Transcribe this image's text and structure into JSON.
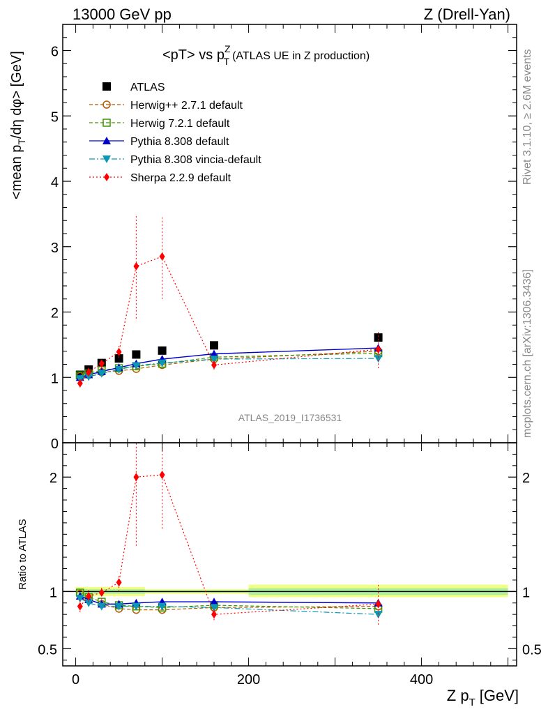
{
  "header": {
    "left": "13000 GeV pp",
    "right": "Z (Drell-Yan)"
  },
  "side_labels": {
    "rivet": "Rivet 3.1.10, ≥ 2.6M events",
    "mcplots": "mcplots.cern.ch [arXiv:1306.3436]"
  },
  "chart_data": [
    {
      "type": "scatter",
      "title": "<pT> vs pTZ (ATLAS UE in Z production)",
      "title_main": "<pT> vs p",
      "title_sup": "Z",
      "title_sub": "T",
      "title_rest": "(ATLAS UE in Z production)",
      "ylabel": "<mean p_T/dη dφ> [GeV]",
      "ylabel_parts": {
        "a": "<mean p",
        "sub": "T",
        "b": "/dη dφ> [GeV]"
      },
      "watermark": "ATLAS_2019_I1736531",
      "xlim": [
        -15,
        510
      ],
      "ylim": [
        0,
        6.4
      ],
      "yticks": [
        "0",
        "1",
        "2",
        "3",
        "4",
        "5",
        "6"
      ],
      "ytick_values": [
        0,
        1,
        2,
        3,
        4,
        5,
        6
      ],
      "x": [
        5,
        15,
        30,
        50,
        70,
        100,
        160,
        350
      ],
      "series": [
        {
          "name": "ATLAS",
          "color": "#000000",
          "marker": "square-filled",
          "line": "none",
          "values": [
            1.04,
            1.12,
            1.22,
            1.29,
            1.35,
            1.41,
            1.49,
            1.61
          ],
          "band_lo": [
            1.02,
            1.1,
            1.19,
            1.26,
            1.32,
            1.38,
            1.46,
            1.57
          ],
          "band_hi": [
            1.06,
            1.14,
            1.25,
            1.32,
            1.38,
            1.44,
            1.52,
            1.65
          ]
        },
        {
          "name": "Herwig++ 2.7.1 default",
          "color": "#b35a00",
          "marker": "circle-open",
          "line": "dashed",
          "values": [
            1.02,
            1.04,
            1.08,
            1.1,
            1.13,
            1.19,
            1.28,
            1.4
          ]
        },
        {
          "name": "Herwig 7.2.1 default",
          "color": "#3c9600",
          "marker": "square-open",
          "line": "dashed",
          "values": [
            1.03,
            1.06,
            1.11,
            1.14,
            1.17,
            1.21,
            1.31,
            1.37
          ]
        },
        {
          "name": "Pythia 8.308 default",
          "color": "#0000cc",
          "marker": "triangle-up",
          "line": "solid",
          "values": [
            1.0,
            1.04,
            1.09,
            1.15,
            1.21,
            1.28,
            1.36,
            1.45
          ]
        },
        {
          "name": "Pythia 8.308 vincia-default",
          "color": "#0a96b4",
          "marker": "triangle-down",
          "line": "dashdot",
          "values": [
            0.98,
            1.01,
            1.06,
            1.12,
            1.18,
            1.22,
            1.28,
            1.29
          ]
        },
        {
          "name": "Sherpa 2.2.9 default",
          "color": "#ff0000",
          "marker": "diamond",
          "line": "dotted",
          "values": [
            0.91,
            1.08,
            1.21,
            1.39,
            2.7,
            2.85,
            1.19,
            1.43
          ],
          "err_lo": [
            0.85,
            1.02,
            1.14,
            1.3,
            1.9,
            2.2,
            1.12,
            1.14
          ],
          "err_hi": [
            0.97,
            1.15,
            1.28,
            1.48,
            3.48,
            3.48,
            1.26,
            1.72
          ]
        }
      ]
    },
    {
      "type": "scatter",
      "title": "",
      "ylabel": "Ratio to ATLAS",
      "xlabel": "Z pT [GeV]",
      "xlabel_main": "Z p",
      "xlabel_sub": "T",
      "xlabel_unit": "[GeV]",
      "xlim": [
        -15,
        510
      ],
      "ylim": [
        0.35,
        2.3
      ],
      "xticks": [
        "0",
        "200",
        "400"
      ],
      "xtick_values": [
        0,
        200,
        400
      ],
      "yticks": [
        "0.5",
        "1",
        "2"
      ],
      "ytick_values": [
        0.5,
        1,
        2
      ],
      "reference": 1,
      "band_segments": [
        {
          "x0": 0,
          "x1": 80,
          "lo": 0.96,
          "hi": 1.04,
          "lo_inner": 0.98,
          "hi_inner": 1.02
        },
        {
          "x0": 80,
          "x1": 200,
          "lo": 0.98,
          "hi": 1.02,
          "lo_inner": 0.99,
          "hi_inner": 1.01
        },
        {
          "x0": 200,
          "x1": 500,
          "lo": 0.95,
          "hi": 1.06,
          "lo_inner": 0.97,
          "hi_inner": 1.03
        }
      ],
      "x": [
        5,
        15,
        30,
        50,
        70,
        100,
        160,
        350
      ],
      "series": [
        {
          "name": "Herwig++ 2.7.1 default",
          "values": [
            0.98,
            0.93,
            0.89,
            0.85,
            0.84,
            0.84,
            0.86,
            0.87
          ]
        },
        {
          "name": "Herwig 7.2.1 default",
          "values": [
            0.99,
            0.95,
            0.91,
            0.88,
            0.87,
            0.86,
            0.88,
            0.85
          ]
        },
        {
          "name": "Pythia 8.308 default",
          "values": [
            0.96,
            0.93,
            0.89,
            0.89,
            0.9,
            0.91,
            0.91,
            0.9
          ]
        },
        {
          "name": "Pythia 8.308 vincia-default",
          "values": [
            0.94,
            0.9,
            0.87,
            0.87,
            0.87,
            0.87,
            0.86,
            0.8
          ]
        },
        {
          "name": "Sherpa 2.2.9 default",
          "values": [
            0.87,
            0.96,
            0.99,
            1.08,
            2.0,
            2.02,
            0.8,
            0.89
          ],
          "err_lo": [
            0.82,
            0.91,
            0.93,
            1.0,
            1.4,
            1.55,
            0.75,
            0.71
          ],
          "err_hi": [
            0.93,
            1.03,
            1.05,
            1.15,
            2.3,
            2.3,
            0.85,
            1.07
          ]
        }
      ]
    }
  ]
}
